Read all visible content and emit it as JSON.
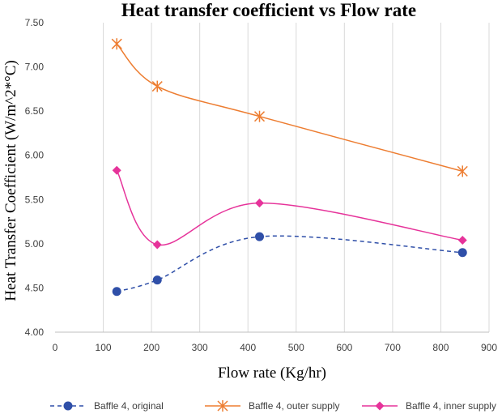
{
  "chart_data": {
    "type": "line",
    "title": "Heat transfer coefficient vs Flow rate",
    "xlabel": "Flow rate (Kg/hr)",
    "ylabel": "Heat Transfer Coefficient (W/m^2*°C)",
    "xlim": [
      0,
      900
    ],
    "ylim": [
      4.0,
      7.5
    ],
    "xticks": [
      0,
      100,
      200,
      300,
      400,
      500,
      600,
      700,
      800,
      900
    ],
    "yticks": [
      "4.00",
      "4.50",
      "5.00",
      "5.50",
      "6.00",
      "6.50",
      "7.00",
      "7.50"
    ],
    "grid": "vertical",
    "legend_position": "bottom",
    "series": [
      {
        "name": "Baffle 4, original",
        "color": "#2f4fa8",
        "line_style": "dashed",
        "marker": "circle",
        "x": [
          128,
          212,
          424,
          845
        ],
        "y": [
          4.46,
          4.59,
          5.08,
          4.9
        ]
      },
      {
        "name": "Baffle 4, outer supply",
        "color": "#ed7d31",
        "line_style": "solid",
        "marker": "asterisk",
        "x": [
          128,
          212,
          424,
          845
        ],
        "y": [
          7.26,
          6.78,
          6.44,
          5.82
        ]
      },
      {
        "name": "Baffle 4, inner supply",
        "color": "#e6339a",
        "line_style": "solid",
        "marker": "diamond",
        "x": [
          128,
          212,
          424,
          845
        ],
        "y": [
          5.83,
          4.99,
          5.46,
          5.04
        ]
      }
    ]
  }
}
